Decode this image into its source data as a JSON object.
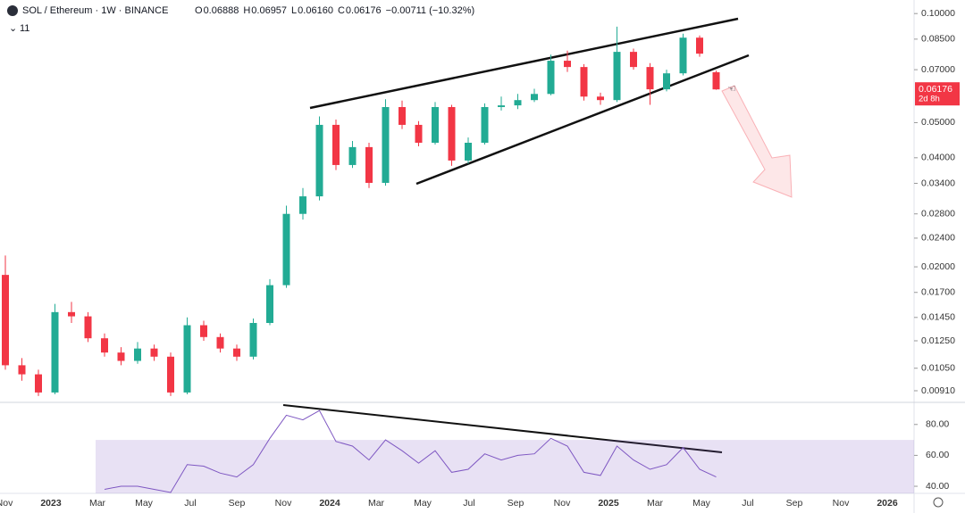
{
  "header": {
    "symbol": "SOL / Ethereum · 1W · BINANCE",
    "ohlc": [
      {
        "key": "O",
        "value": "0.06888"
      },
      {
        "key": "H",
        "value": "0.06957"
      },
      {
        "key": "L",
        "value": "0.06160"
      },
      {
        "key": "C",
        "value": "0.06176"
      }
    ],
    "change": "−0.00711 (−10.32%)",
    "indicators": "11"
  },
  "price_axis": {
    "scale": "log",
    "ylim": [
      0.0085,
      0.109
    ],
    "ticks": [
      {
        "value": 0.1,
        "label": "0.10000"
      },
      {
        "value": 0.085,
        "label": "0.08500"
      },
      {
        "value": 0.07,
        "label": "0.07000"
      },
      {
        "value": 0.05,
        "label": "0.05000"
      },
      {
        "value": 0.04,
        "label": "0.04000"
      },
      {
        "value": 0.034,
        "label": "0.03400"
      },
      {
        "value": 0.028,
        "label": "0.02800"
      },
      {
        "value": 0.024,
        "label": "0.02400"
      },
      {
        "value": 0.02,
        "label": "0.02000"
      },
      {
        "value": 0.017,
        "label": "0.01700"
      },
      {
        "value": 0.0145,
        "label": "0.01450"
      },
      {
        "value": 0.0125,
        "label": "0.01250"
      },
      {
        "value": 0.0105,
        "label": "0.01050"
      },
      {
        "value": 0.0091,
        "label": "0.00910"
      }
    ],
    "last_price": {
      "value": 0.06176,
      "label": "0.06176"
    },
    "countdown": "2d 8h"
  },
  "time_axis": {
    "labels": [
      "Nov",
      "2023",
      "Mar",
      "May",
      "Jul",
      "Sep",
      "Nov",
      "2024",
      "Mar",
      "May",
      "Jul",
      "Sep",
      "Nov",
      "2025",
      "Mar",
      "May",
      "Jul",
      "Sep",
      "Nov",
      "2026"
    ]
  },
  "candles": {
    "up_color": "#22ab94",
    "down_color": "#f23645",
    "open": [
      0.019,
      0.0107,
      0.0101,
      0.009,
      0.015,
      0.0146,
      0.0127,
      0.0116,
      0.011,
      0.0119,
      0.0113,
      0.009,
      0.0138,
      0.0128,
      0.0119,
      0.0113,
      0.014,
      0.0178,
      0.028,
      0.0313,
      0.0493,
      0.0382,
      0.0428,
      0.0341,
      0.0552,
      0.0493,
      0.044,
      0.0552,
      0.0393,
      0.044,
      0.0552,
      0.0558,
      0.0577,
      0.06,
      0.0741,
      0.0712,
      0.059,
      0.0577,
      0.0784,
      0.0712,
      0.0618,
      0.0684,
      0.0858,
      0.06888
    ],
    "high": [
      0.0215,
      0.0112,
      0.0104,
      0.0158,
      0.016,
      0.015,
      0.0131,
      0.012,
      0.0124,
      0.0122,
      0.0116,
      0.0145,
      0.0142,
      0.0131,
      0.0122,
      0.0144,
      0.0185,
      0.0295,
      0.033,
      0.052,
      0.051,
      0.0445,
      0.044,
      0.058,
      0.0575,
      0.0505,
      0.057,
      0.056,
      0.0455,
      0.0565,
      0.059,
      0.06,
      0.062,
      0.077,
      0.079,
      0.0725,
      0.0605,
      0.092,
      0.08,
      0.073,
      0.07,
      0.088,
      0.087,
      0.06957
    ],
    "low": [
      0.0104,
      0.0097,
      0.0088,
      0.0089,
      0.014,
      0.0124,
      0.0113,
      0.0107,
      0.0108,
      0.011,
      0.0088,
      0.0089,
      0.0125,
      0.0116,
      0.011,
      0.0111,
      0.0138,
      0.0175,
      0.027,
      0.0305,
      0.037,
      0.0375,
      0.033,
      0.0335,
      0.048,
      0.043,
      0.0435,
      0.038,
      0.0385,
      0.0435,
      0.054,
      0.0545,
      0.057,
      0.0595,
      0.069,
      0.0575,
      0.056,
      0.057,
      0.07,
      0.056,
      0.061,
      0.0675,
      0.076,
      0.0616
    ],
    "close": [
      0.0107,
      0.0101,
      0.009,
      0.015,
      0.0146,
      0.0127,
      0.0116,
      0.011,
      0.0119,
      0.0113,
      0.009,
      0.0138,
      0.0128,
      0.0119,
      0.0113,
      0.014,
      0.0178,
      0.028,
      0.0313,
      0.0493,
      0.0382,
      0.0428,
      0.0341,
      0.0552,
      0.0493,
      0.044,
      0.0552,
      0.0393,
      0.044,
      0.0552,
      0.0558,
      0.0577,
      0.06,
      0.0741,
      0.0712,
      0.059,
      0.0577,
      0.0784,
      0.0712,
      0.0618,
      0.0684,
      0.0858,
      0.0775,
      0.06176
    ]
  },
  "rsi": {
    "ylim": [
      35.4,
      94.3
    ],
    "band": [
      30,
      70
    ],
    "color": "#7e57c2",
    "ticks": [
      {
        "value": 80,
        "label": "80.00"
      },
      {
        "value": 60,
        "label": "60.00"
      },
      {
        "value": 40,
        "label": "40.00"
      }
    ],
    "values": [
      null,
      null,
      null,
      null,
      null,
      null,
      38,
      40,
      40,
      38,
      36,
      54,
      53,
      48.5,
      46,
      54,
      71,
      86,
      83,
      89,
      69,
      66,
      57,
      70,
      63,
      55,
      63,
      49,
      51,
      61,
      57,
      60,
      61,
      71,
      66,
      49,
      47,
      66,
      57,
      51,
      54,
      65,
      51,
      46
    ]
  }
}
